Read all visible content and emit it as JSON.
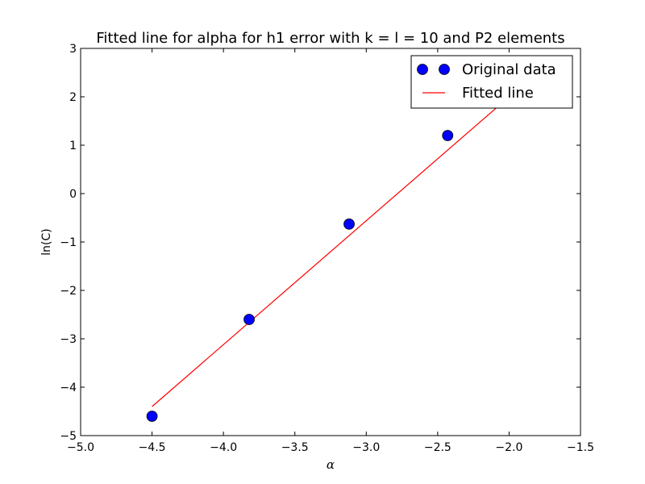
{
  "chart_data": {
    "type": "scatter",
    "title": "Fitted line for alpha for h1 error with k = l = 10 and P2 elements",
    "xlabel": "α",
    "ylabel": "ln(C)",
    "xlim": [
      -5.0,
      -1.5
    ],
    "ylim": [
      -5,
      3
    ],
    "x_ticks": [
      -5.0,
      -4.5,
      -4.0,
      -3.5,
      -3.0,
      -2.5,
      -2.0,
      -1.5
    ],
    "x_tick_labels": [
      "−5.0",
      "−4.5",
      "−4.0",
      "−3.5",
      "−3.0",
      "−2.5",
      "−2.0",
      "−1.5"
    ],
    "y_ticks": [
      -5,
      -4,
      -3,
      -2,
      -1,
      0,
      1,
      2,
      3
    ],
    "y_tick_labels": [
      "−5",
      "−4",
      "−3",
      "−2",
      "−1",
      "0",
      "1",
      "2",
      "3"
    ],
    "grid": false,
    "legend_position": "top-right",
    "series": [
      {
        "name": "Original data",
        "kind": "scatter",
        "color": "#0000ff",
        "x": [
          -4.5,
          -3.82,
          -3.12,
          -2.43
        ],
        "y": [
          -4.6,
          -2.6,
          -0.63,
          1.2
        ]
      },
      {
        "name": "Fitted line",
        "kind": "line",
        "color": "#ff0000",
        "x": [
          -4.5,
          -2.0
        ],
        "y": [
          -4.4,
          2.0
        ]
      }
    ]
  }
}
